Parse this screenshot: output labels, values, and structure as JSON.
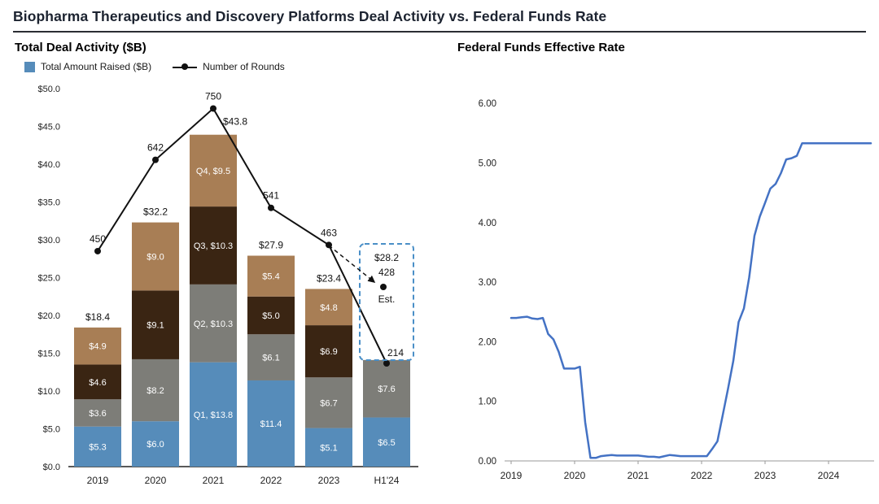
{
  "page": {
    "title": "Biopharma Therapeutics and Discovery Platforms Deal Activity vs. Federal Funds Rate"
  },
  "left_chart": {
    "subtitle": "Total Deal Activity ($B)",
    "legend": {
      "bar_label": "Total Amount Raised ($B)",
      "line_label": "Number of Rounds"
    }
  },
  "right_chart": {
    "subtitle": "Federal Funds Effective Rate"
  },
  "colors": {
    "q1_blue": "#568cba",
    "q2_gray": "#7d7d78",
    "q3_darkbrown": "#3a2513",
    "q4_tan": "#a87e55",
    "rounds_line": "#111111",
    "projection_box": "#4a8fc7",
    "fed_line": "#4472c4",
    "title_text": "#1c2330"
  },
  "chart_data": [
    {
      "type": "bar",
      "subtype": "stacked-bars-with-rounds-line",
      "title": "Total Deal Activity ($B)",
      "categories": [
        "2019",
        "2020",
        "2021",
        "2022",
        "2023",
        "H1'24"
      ],
      "series": [
        {
          "name": "Q1",
          "color": "#568cba",
          "values": [
            5.3,
            6.0,
            13.8,
            11.4,
            5.1,
            6.5
          ],
          "labels": [
            "$5.3",
            "$6.0",
            "Q1, $13.8",
            "$11.4",
            "$5.1",
            "$6.5"
          ]
        },
        {
          "name": "Q2",
          "color": "#7d7d78",
          "values": [
            3.6,
            8.2,
            10.3,
            6.1,
            6.7,
            7.6
          ],
          "labels": [
            "$3.6",
            "$8.2",
            "Q2, $10.3",
            "$6.1",
            "$6.7",
            "$7.6"
          ]
        },
        {
          "name": "Q3",
          "color": "#3a2513",
          "values": [
            4.6,
            9.1,
            10.3,
            5.0,
            6.9,
            null
          ],
          "labels": [
            "$4.6",
            "$9.1",
            "Q3, $10.3",
            "$5.0",
            "$6.9",
            ""
          ]
        },
        {
          "name": "Q4",
          "color": "#a87e55",
          "values": [
            4.9,
            9.0,
            9.5,
            5.4,
            4.8,
            null
          ],
          "labels": [
            "$4.9",
            "$9.0",
            "Q4, $9.5",
            "$5.4",
            "$4.8",
            ""
          ]
        }
      ],
      "totals": [
        "$18.4",
        "$32.2",
        "$43.8",
        "$27.9",
        "$23.4",
        ""
      ],
      "line_series": {
        "name": "Number of Rounds",
        "values": [
          450,
          642,
          750,
          541,
          463,
          214
        ]
      },
      "projection": {
        "amount_label": "$28.2",
        "rounds_label": "428",
        "est_label": "Est."
      },
      "y_ticks": [
        "$0.0",
        "$5.0",
        "$10.0",
        "$15.0",
        "$20.0",
        "$25.0",
        "$30.0",
        "$35.0",
        "$40.0",
        "$45.0",
        "$50.0"
      ],
      "ylim": [
        0,
        50
      ],
      "legend_position": "top-left",
      "grid": false
    },
    {
      "type": "line",
      "title": "Federal Funds Effective Rate",
      "x_years": [
        "2019",
        "2020",
        "2021",
        "2022",
        "2023",
        "2024"
      ],
      "start_month": "2019-01",
      "monthly_values": [
        2.4,
        2.4,
        2.41,
        2.42,
        2.39,
        2.38,
        2.4,
        2.13,
        2.04,
        1.83,
        1.55,
        1.55,
        1.55,
        1.58,
        0.65,
        0.05,
        0.05,
        0.08,
        0.09,
        0.1,
        0.09,
        0.09,
        0.09,
        0.09,
        0.09,
        0.08,
        0.07,
        0.07,
        0.06,
        0.08,
        0.1,
        0.09,
        0.08,
        0.08,
        0.08,
        0.08,
        0.08,
        0.08,
        0.2,
        0.33,
        0.77,
        1.21,
        1.68,
        2.33,
        2.56,
        3.08,
        3.78,
        4.1,
        4.33,
        4.57,
        4.65,
        4.83,
        5.06,
        5.08,
        5.12,
        5.33,
        5.33,
        5.33,
        5.33,
        5.33,
        5.33,
        5.33,
        5.33,
        5.33,
        5.33,
        5.33,
        5.33,
        5.33,
        5.33
      ],
      "y_ticks": [
        "0.00",
        "1.00",
        "2.00",
        "3.00",
        "4.00",
        "5.00",
        "6.00"
      ],
      "ylim": [
        0,
        6
      ],
      "line_color": "#4472c4",
      "grid": false
    }
  ]
}
